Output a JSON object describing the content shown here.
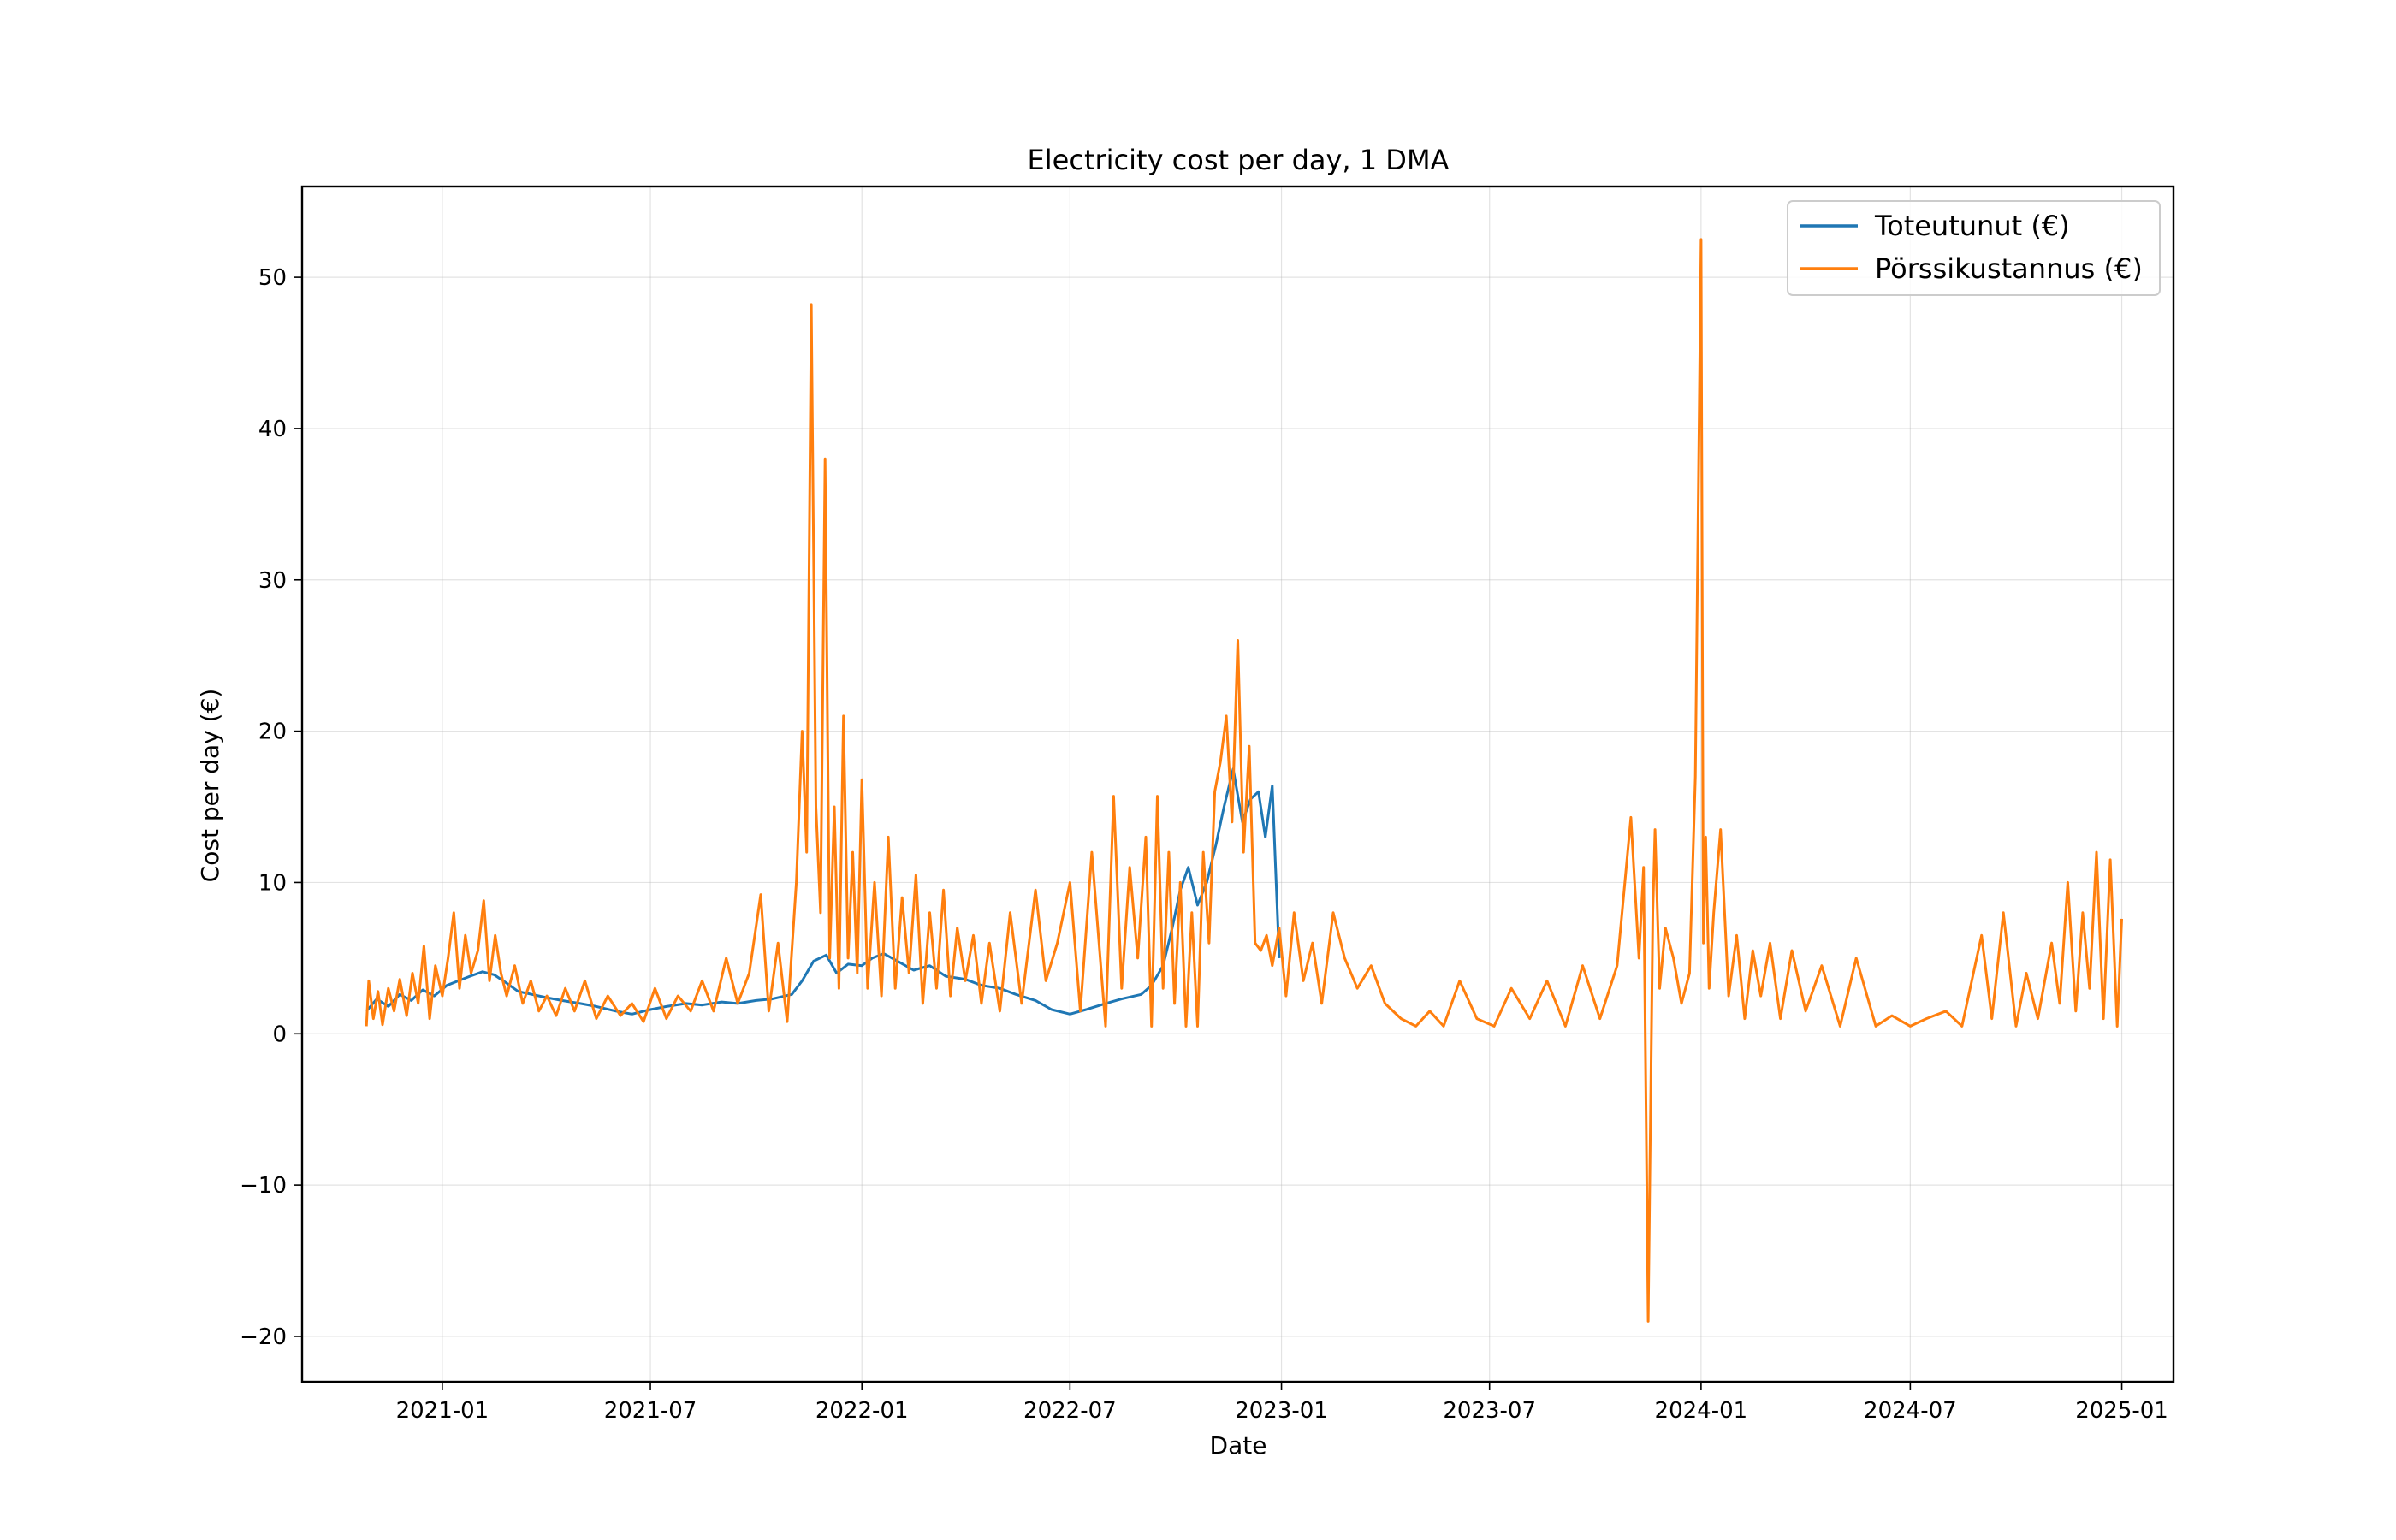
{
  "chart_data": {
    "type": "line",
    "title": "Electricity cost per day, 1 DMA",
    "xlabel": "Date",
    "ylabel": "Cost per day (€)",
    "xlim": [
      "2020-09-01",
      "2025-02-15"
    ],
    "ylim": [
      -23,
      56
    ],
    "x_ticks": [
      "2021-01-01",
      "2021-07-01",
      "2022-01-01",
      "2022-07-01",
      "2023-01-01",
      "2023-07-01",
      "2024-01-01",
      "2024-07-01",
      "2025-01-01"
    ],
    "x_tick_labels": [
      "2021-01",
      "2021-07",
      "2022-01",
      "2022-07",
      "2023-01",
      "2023-07",
      "2024-01",
      "2024-07",
      "2025-01"
    ],
    "y_ticks": [
      -20,
      -10,
      0,
      10,
      20,
      30,
      40,
      50
    ],
    "y_tick_labels": [
      "−20",
      "−10",
      "0",
      "10",
      "20",
      "30",
      "40",
      "50"
    ],
    "grid": true,
    "legend_position": "top-right",
    "series": [
      {
        "name": "Toteutunut (€)",
        "color": "#1f77b4",
        "x": [
          "2020-10-27",
          "2020-11-05",
          "2020-11-15",
          "2020-11-25",
          "2020-12-05",
          "2020-12-15",
          "2020-12-25",
          "2021-01-05",
          "2021-01-15",
          "2021-01-25",
          "2021-02-05",
          "2021-02-15",
          "2021-02-25",
          "2021-03-08",
          "2021-03-20",
          "2021-04-01",
          "2021-04-15",
          "2021-05-01",
          "2021-05-15",
          "2021-06-01",
          "2021-06-15",
          "2021-07-01",
          "2021-07-15",
          "2021-08-01",
          "2021-08-15",
          "2021-09-01",
          "2021-09-15",
          "2021-10-01",
          "2021-10-15",
          "2021-11-01",
          "2021-11-10",
          "2021-11-20",
          "2021-12-01",
          "2021-12-10",
          "2021-12-20",
          "2022-01-01",
          "2022-01-10",
          "2022-01-20",
          "2022-02-01",
          "2022-02-15",
          "2022-03-01",
          "2022-03-15",
          "2022-04-01",
          "2022-04-15",
          "2022-05-01",
          "2022-05-15",
          "2022-06-01",
          "2022-06-15",
          "2022-07-01",
          "2022-07-15",
          "2022-08-01",
          "2022-08-15",
          "2022-09-01",
          "2022-09-10",
          "2022-09-20",
          "2022-09-28",
          "2022-10-05",
          "2022-10-12",
          "2022-10-20",
          "2022-10-28",
          "2022-11-05",
          "2022-11-12",
          "2022-11-20",
          "2022-11-28",
          "2022-12-05",
          "2022-12-12",
          "2022-12-18",
          "2022-12-24",
          "2022-12-30"
        ],
        "y": [
          1.5,
          2.3,
          1.8,
          2.6,
          2.2,
          2.9,
          2.5,
          3.2,
          3.5,
          3.8,
          4.1,
          3.9,
          3.4,
          2.8,
          2.6,
          2.4,
          2.2,
          2.0,
          1.8,
          1.5,
          1.3,
          1.6,
          1.8,
          2.0,
          1.9,
          2.1,
          2.0,
          2.2,
          2.3,
          2.6,
          3.5,
          4.8,
          5.2,
          4.0,
          4.6,
          4.5,
          5.0,
          5.3,
          4.8,
          4.2,
          4.5,
          3.8,
          3.6,
          3.2,
          3.0,
          2.6,
          2.2,
          1.6,
          1.3,
          1.6,
          2.0,
          2.3,
          2.6,
          3.2,
          4.5,
          7.0,
          9.5,
          11.0,
          8.5,
          10.0,
          12.5,
          15.0,
          17.5,
          14.0,
          15.5,
          16.0,
          13.0,
          16.4,
          5.0
        ]
      },
      {
        "name": "Pörssikustannus (€)",
        "color": "#ff7f0e",
        "x": [
          "2020-10-27",
          "2020-10-29",
          "2020-11-02",
          "2020-11-06",
          "2020-11-10",
          "2020-11-15",
          "2020-11-20",
          "2020-11-25",
          "2020-12-01",
          "2020-12-06",
          "2020-12-11",
          "2020-12-16",
          "2020-12-21",
          "2020-12-26",
          "2021-01-01",
          "2021-01-06",
          "2021-01-11",
          "2021-01-16",
          "2021-01-21",
          "2021-01-26",
          "2021-02-01",
          "2021-02-06",
          "2021-02-11",
          "2021-02-16",
          "2021-02-21",
          "2021-02-26",
          "2021-03-05",
          "2021-03-12",
          "2021-03-19",
          "2021-03-26",
          "2021-04-02",
          "2021-04-10",
          "2021-04-18",
          "2021-04-26",
          "2021-05-05",
          "2021-05-15",
          "2021-05-25",
          "2021-06-05",
          "2021-06-15",
          "2021-06-25",
          "2021-07-05",
          "2021-07-15",
          "2021-07-25",
          "2021-08-05",
          "2021-08-15",
          "2021-08-25",
          "2021-09-05",
          "2021-09-15",
          "2021-09-25",
          "2021-10-05",
          "2021-10-12",
          "2021-10-20",
          "2021-10-28",
          "2021-11-05",
          "2021-11-10",
          "2021-11-14",
          "2021-11-18",
          "2021-11-22",
          "2021-11-26",
          "2021-11-30",
          "2021-12-04",
          "2021-12-08",
          "2021-12-12",
          "2021-12-16",
          "2021-12-20",
          "2021-12-24",
          "2021-12-28",
          "2022-01-01",
          "2022-01-06",
          "2022-01-12",
          "2022-01-18",
          "2022-01-24",
          "2022-01-30",
          "2022-02-05",
          "2022-02-11",
          "2022-02-17",
          "2022-02-23",
          "2022-03-01",
          "2022-03-07",
          "2022-03-13",
          "2022-03-19",
          "2022-03-25",
          "2022-04-01",
          "2022-04-08",
          "2022-04-15",
          "2022-04-22",
          "2022-05-01",
          "2022-05-10",
          "2022-05-20",
          "2022-06-01",
          "2022-06-10",
          "2022-06-20",
          "2022-07-01",
          "2022-07-10",
          "2022-07-20",
          "2022-08-01",
          "2022-08-08",
          "2022-08-15",
          "2022-08-22",
          "2022-08-29",
          "2022-09-05",
          "2022-09-10",
          "2022-09-15",
          "2022-09-20",
          "2022-09-25",
          "2022-09-30",
          "2022-10-05",
          "2022-10-10",
          "2022-10-15",
          "2022-10-20",
          "2022-10-25",
          "2022-10-30",
          "2022-11-04",
          "2022-11-09",
          "2022-11-14",
          "2022-11-19",
          "2022-11-24",
          "2022-11-29",
          "2022-12-04",
          "2022-12-09",
          "2022-12-14",
          "2022-12-19",
          "2022-12-24",
          "2022-12-30",
          "2023-01-05",
          "2023-01-12",
          "2023-01-20",
          "2023-01-28",
          "2023-02-05",
          "2023-02-15",
          "2023-02-25",
          "2023-03-08",
          "2023-03-20",
          "2023-04-01",
          "2023-04-15",
          "2023-04-28",
          "2023-05-10",
          "2023-05-22",
          "2023-06-05",
          "2023-06-20",
          "2023-07-05",
          "2023-07-20",
          "2023-08-05",
          "2023-08-20",
          "2023-09-05",
          "2023-09-20",
          "2023-10-05",
          "2023-10-20",
          "2023-11-01",
          "2023-11-08",
          "2023-11-12",
          "2023-11-16",
          "2023-11-20",
          "2023-11-22",
          "2023-11-26",
          "2023-12-01",
          "2023-12-08",
          "2023-12-15",
          "2023-12-22",
          "2023-12-27",
          "2024-01-01",
          "2024-01-03",
          "2024-01-05",
          "2024-01-08",
          "2024-01-12",
          "2024-01-18",
          "2024-01-25",
          "2024-02-01",
          "2024-02-08",
          "2024-02-15",
          "2024-02-22",
          "2024-03-01",
          "2024-03-10",
          "2024-03-20",
          "2024-04-01",
          "2024-04-15",
          "2024-05-01",
          "2024-05-15",
          "2024-06-01",
          "2024-06-15",
          "2024-07-01",
          "2024-07-15",
          "2024-08-01",
          "2024-08-15",
          "2024-09-01",
          "2024-09-10",
          "2024-09-20",
          "2024-10-01",
          "2024-10-10",
          "2024-10-20",
          "2024-11-01",
          "2024-11-08",
          "2024-11-15",
          "2024-11-22",
          "2024-11-28",
          "2024-12-04",
          "2024-12-10",
          "2024-12-16",
          "2024-12-22",
          "2024-12-28",
          "2025-01-01"
        ],
        "y": [
          0.5,
          3.5,
          1.0,
          2.8,
          0.6,
          3.0,
          1.5,
          3.6,
          1.2,
          4.0,
          2.0,
          5.8,
          1.0,
          4.5,
          2.5,
          5.0,
          8.0,
          3.0,
          6.5,
          4.0,
          5.5,
          8.8,
          3.5,
          6.5,
          4.0,
          2.5,
          4.5,
          2.0,
          3.5,
          1.5,
          2.5,
          1.2,
          3.0,
          1.5,
          3.5,
          1.0,
          2.5,
          1.2,
          2.0,
          0.8,
          3.0,
          1.0,
          2.5,
          1.5,
          3.5,
          1.5,
          5.0,
          2.0,
          4.0,
          9.2,
          1.5,
          6.0,
          0.8,
          10.0,
          20.0,
          12.0,
          48.2,
          15.0,
          8.0,
          38.0,
          5.0,
          15.0,
          3.0,
          21.0,
          5.0,
          12.0,
          4.0,
          16.8,
          3.0,
          10.0,
          2.5,
          13.0,
          3.0,
          9.0,
          4.0,
          10.5,
          2.0,
          8.0,
          3.0,
          9.5,
          2.5,
          7.0,
          3.5,
          6.5,
          2.0,
          6.0,
          1.5,
          8.0,
          2.0,
          9.5,
          3.5,
          6.0,
          10.0,
          1.5,
          12.0,
          0.5,
          15.7,
          3.0,
          11.0,
          5.0,
          13.0,
          0.5,
          15.7,
          3.0,
          12.0,
          2.0,
          10.0,
          0.5,
          8.0,
          0.5,
          12.0,
          6.0,
          16.0,
          18.0,
          21.0,
          14.0,
          26.0,
          12.0,
          19.0,
          6.0,
          5.5,
          6.5,
          4.5,
          7.0,
          2.5,
          8.0,
          3.5,
          6.0,
          2.0,
          8.0,
          5.0,
          3.0,
          4.5,
          2.0,
          1.0,
          0.5,
          1.5,
          0.5,
          3.5,
          1.0,
          0.5,
          3.0,
          1.0,
          3.5,
          0.5,
          4.5,
          1.0,
          4.5,
          14.3,
          5.0,
          11.0,
          -19.0,
          8.0,
          13.5,
          3.0,
          7.0,
          5.0,
          2.0,
          4.0,
          17.0,
          52.5,
          6.0,
          13.0,
          3.0,
          8.0,
          13.5,
          2.5,
          6.5,
          1.0,
          5.5,
          2.5,
          6.0,
          1.0,
          5.5,
          1.5,
          4.5,
          0.5,
          5.0,
          0.5,
          1.2,
          0.5,
          1.0,
          1.5,
          0.5,
          6.5,
          1.0,
          8.0,
          0.5,
          4.0,
          1.0,
          6.0,
          2.0,
          10.0,
          1.5,
          8.0,
          3.0,
          12.0,
          1.0,
          11.5,
          0.5,
          7.6
        ]
      }
    ]
  }
}
